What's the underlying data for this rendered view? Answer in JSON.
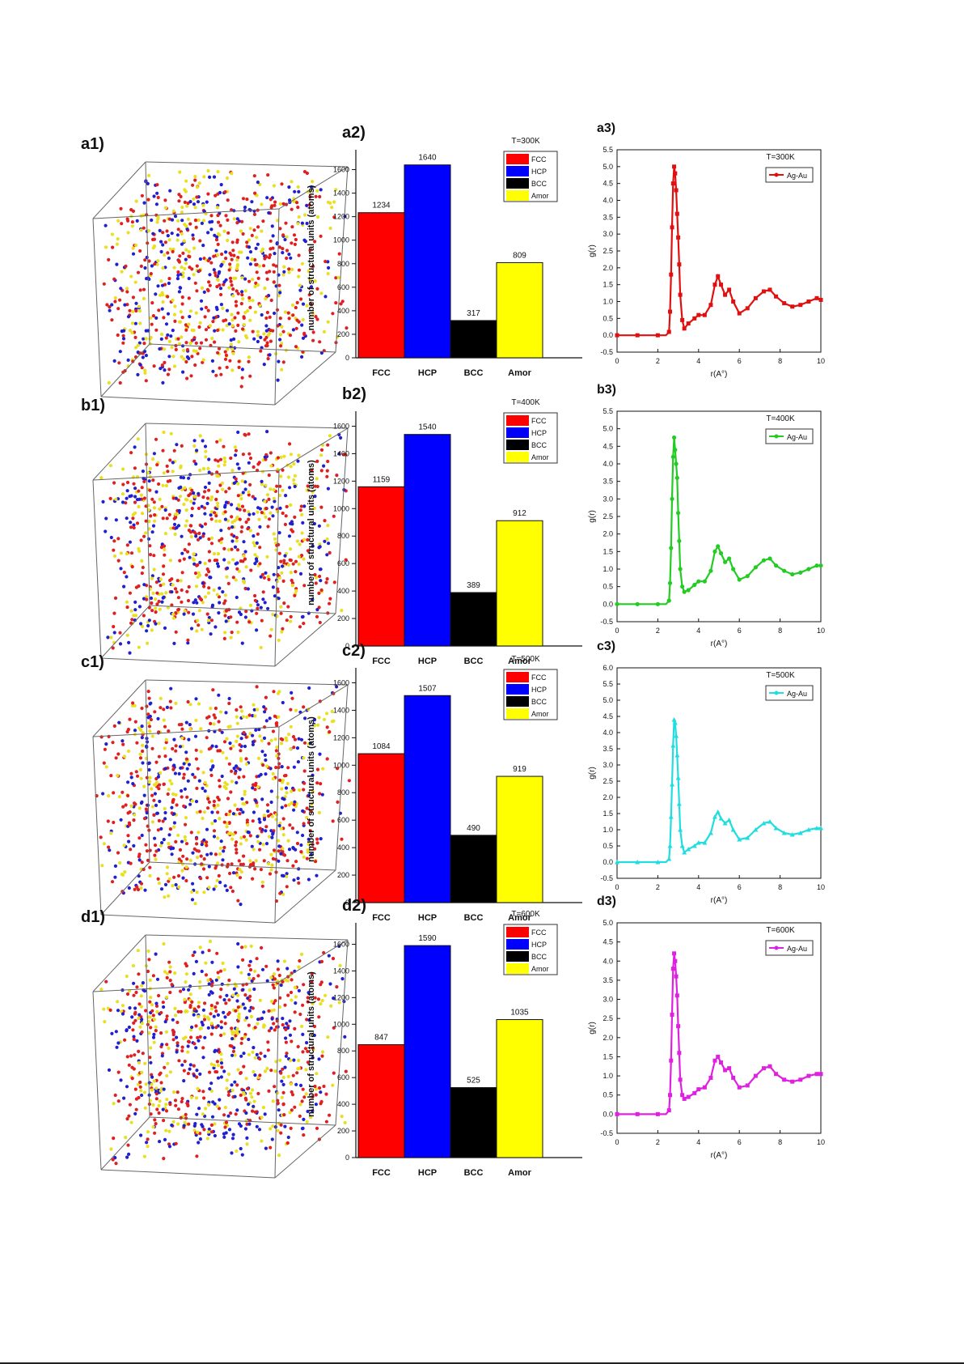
{
  "rows": [
    {
      "cube_label": "a1)",
      "bar": {
        "label": "a2)",
        "temp": "T=300K",
        "values": [
          1234,
          1640,
          317,
          809
        ],
        "ylim": [
          0,
          1700
        ],
        "ticks": [
          0,
          200,
          400,
          600,
          800,
          1000,
          1200,
          1400,
          1600
        ]
      },
      "rdf": {
        "label": "a3)",
        "temp": "T=300K",
        "color": "#e01010",
        "marker": "square",
        "ylim": [
          -0.5,
          5.5
        ],
        "yticks": [
          "-0.5",
          "0.0",
          "0.5",
          "1.0",
          "1.5",
          "2.0",
          "2.5",
          "3.0",
          "3.5",
          "4.0",
          "4.5",
          "5.0",
          "5.5"
        ],
        "x": [
          0,
          0.5,
          1,
          1.5,
          2,
          2.4,
          2.55,
          2.6,
          2.65,
          2.7,
          2.75,
          2.8,
          2.85,
          2.9,
          2.95,
          3.0,
          3.05,
          3.1,
          3.2,
          3.3,
          3.5,
          3.8,
          4.0,
          4.3,
          4.6,
          4.8,
          4.95,
          5.1,
          5.3,
          5.5,
          5.7,
          6.0,
          6.4,
          6.8,
          7.2,
          7.5,
          7.8,
          8.2,
          8.6,
          9.0,
          9.4,
          9.8,
          10
        ],
        "y": [
          0,
          0,
          0,
          0,
          0,
          0,
          0.1,
          0.7,
          1.8,
          3.2,
          4.5,
          5.0,
          4.8,
          4.3,
          3.6,
          2.9,
          2.1,
          1.2,
          0.45,
          0.2,
          0.35,
          0.5,
          0.6,
          0.6,
          0.9,
          1.5,
          1.75,
          1.5,
          1.2,
          1.35,
          1.0,
          0.65,
          0.8,
          1.1,
          1.3,
          1.35,
          1.15,
          0.95,
          0.85,
          0.9,
          1.0,
          1.1,
          1.05
        ]
      }
    },
    {
      "cube_label": "b1)",
      "bar": {
        "label": "b2)",
        "temp": "T=400K",
        "values": [
          1159,
          1540,
          389,
          912
        ],
        "ylim": [
          0,
          1650
        ],
        "ticks": [
          0,
          200,
          400,
          600,
          800,
          1000,
          1200,
          1400,
          1600
        ]
      },
      "rdf": {
        "label": "b3)",
        "temp": "T=400K",
        "color": "#22cc22",
        "marker": "circle",
        "ylim": [
          -0.5,
          5.5
        ],
        "yticks": [
          "-0.5",
          "0.0",
          "0.5",
          "1.0",
          "1.5",
          "2.0",
          "2.5",
          "3.0",
          "3.5",
          "4.0",
          "4.5",
          "5.0",
          "5.5"
        ],
        "x": [
          0,
          0.5,
          1,
          1.5,
          2,
          2.4,
          2.55,
          2.6,
          2.65,
          2.7,
          2.75,
          2.8,
          2.85,
          2.9,
          2.95,
          3.0,
          3.05,
          3.1,
          3.2,
          3.3,
          3.5,
          3.8,
          4.0,
          4.3,
          4.6,
          4.8,
          4.95,
          5.1,
          5.3,
          5.5,
          5.7,
          6.0,
          6.4,
          6.8,
          7.2,
          7.5,
          7.8,
          8.2,
          8.6,
          9.0,
          9.4,
          9.8,
          10
        ],
        "y": [
          0,
          0,
          0,
          0,
          0,
          0,
          0.1,
          0.6,
          1.6,
          3.0,
          4.2,
          4.75,
          4.4,
          4.0,
          3.6,
          2.6,
          1.8,
          1.0,
          0.5,
          0.35,
          0.4,
          0.55,
          0.65,
          0.65,
          0.95,
          1.5,
          1.65,
          1.45,
          1.2,
          1.3,
          1.0,
          0.7,
          0.8,
          1.05,
          1.25,
          1.3,
          1.1,
          0.95,
          0.85,
          0.9,
          1.0,
          1.1,
          1.1
        ]
      }
    },
    {
      "cube_label": "c1)",
      "bar": {
        "label": "c2)",
        "temp": "T=500K",
        "values": [
          1084,
          1507,
          490,
          919
        ],
        "ylim": [
          0,
          1650
        ],
        "ticks": [
          0,
          200,
          400,
          600,
          800,
          1000,
          1200,
          1400,
          1600
        ]
      },
      "rdf": {
        "label": "c3)",
        "temp": "T=500K",
        "color": "#22dde0",
        "marker": "triangle",
        "ylim": [
          -0.5,
          6.0
        ],
        "yticks": [
          "-0.5",
          "0.0",
          "0.5",
          "1.0",
          "1.5",
          "2.0",
          "2.5",
          "3.0",
          "3.5",
          "4.0",
          "4.5",
          "5.0",
          "5.5",
          "6.0"
        ],
        "x": [
          0,
          0.5,
          1,
          1.5,
          2,
          2.4,
          2.55,
          2.6,
          2.65,
          2.7,
          2.75,
          2.8,
          2.85,
          2.9,
          2.95,
          3.0,
          3.05,
          3.1,
          3.2,
          3.3,
          3.5,
          3.8,
          4.0,
          4.3,
          4.6,
          4.8,
          4.95,
          5.1,
          5.3,
          5.5,
          5.7,
          6.0,
          6.4,
          6.8,
          7.2,
          7.5,
          7.8,
          8.2,
          8.6,
          9.0,
          9.4,
          9.8,
          10
        ],
        "y": [
          0,
          0,
          0,
          0,
          0,
          0,
          0.1,
          0.5,
          1.4,
          2.4,
          3.6,
          4.4,
          4.3,
          3.9,
          3.3,
          2.6,
          1.8,
          1.0,
          0.5,
          0.3,
          0.4,
          0.5,
          0.6,
          0.6,
          0.9,
          1.4,
          1.55,
          1.35,
          1.2,
          1.3,
          1.0,
          0.7,
          0.75,
          1.0,
          1.2,
          1.25,
          1.05,
          0.9,
          0.85,
          0.9,
          1.0,
          1.05,
          1.05
        ]
      }
    },
    {
      "cube_label": "d1)",
      "bar": {
        "label": "d2)",
        "temp": "T=600K",
        "values": [
          847,
          1590,
          525,
          1035
        ],
        "ylim": [
          0,
          1700
        ],
        "ticks": [
          0,
          200,
          400,
          600,
          800,
          1000,
          1200,
          1400,
          1600
        ]
      },
      "rdf": {
        "label": "d3)",
        "temp": "T=600K",
        "color": "#e020e0",
        "marker": "square",
        "ylim": [
          -0.5,
          5.0
        ],
        "yticks": [
          "-0.5",
          "0.0",
          "0.5",
          "1.0",
          "1.5",
          "2.0",
          "2.5",
          "3.0",
          "3.5",
          "4.0",
          "4.5",
          "5.0"
        ],
        "x": [
          0,
          0.5,
          1,
          1.5,
          2,
          2.4,
          2.55,
          2.6,
          2.65,
          2.7,
          2.75,
          2.8,
          2.85,
          2.9,
          2.95,
          3.0,
          3.05,
          3.1,
          3.2,
          3.3,
          3.5,
          3.8,
          4.0,
          4.3,
          4.6,
          4.8,
          4.95,
          5.1,
          5.3,
          5.5,
          5.7,
          6.0,
          6.4,
          6.8,
          7.2,
          7.5,
          7.8,
          8.2,
          8.6,
          9.0,
          9.4,
          9.8,
          10
        ],
        "y": [
          0,
          0,
          0,
          0,
          0,
          0,
          0.1,
          0.5,
          1.4,
          2.6,
          3.8,
          4.2,
          4.0,
          3.6,
          3.1,
          2.3,
          1.6,
          0.9,
          0.5,
          0.4,
          0.45,
          0.55,
          0.65,
          0.7,
          0.95,
          1.4,
          1.5,
          1.35,
          1.15,
          1.2,
          0.95,
          0.7,
          0.75,
          1.0,
          1.2,
          1.25,
          1.05,
          0.9,
          0.85,
          0.9,
          1.0,
          1.05,
          1.05
        ]
      }
    }
  ],
  "shared": {
    "categories": [
      "FCC",
      "HCP",
      "BCC",
      "Amor"
    ],
    "legend": [
      "FCC",
      "HCP",
      "BCC",
      "Amor"
    ],
    "bar_colors": [
      "#ff0000",
      "#0000ff",
      "#000000",
      "#ffff00"
    ],
    "bar_ylabel": "number of structural units (atoms)",
    "rdf_xlabel": "r(A°)",
    "rdf_ylabel": "g(r)",
    "rdf_series": "Ag-Au",
    "rdf_xticks": [
      "0",
      "2",
      "4",
      "6",
      "8",
      "10"
    ],
    "atom_colors": [
      "#e02020",
      "#2020d0",
      "#e8e020",
      "#202040"
    ]
  },
  "chart_data": [
    {
      "type": "bar",
      "title": "T=300K",
      "ylabel": "number of structural units (atoms)",
      "categories": [
        "FCC",
        "HCP",
        "BCC",
        "Amor"
      ],
      "values": [
        1234,
        1640,
        317,
        809
      ],
      "ylim": [
        0,
        1700
      ]
    },
    {
      "type": "line",
      "title": "T=300K",
      "xlabel": "r(A°)",
      "ylabel": "g(r)",
      "series": [
        {
          "name": "Ag-Au"
        }
      ],
      "xlim": [
        0,
        10
      ],
      "ylim": [
        -0.5,
        5.5
      ]
    },
    {
      "type": "bar",
      "title": "T=400K",
      "ylabel": "number of structural units (atoms)",
      "categories": [
        "FCC",
        "HCP",
        "BCC",
        "Amor"
      ],
      "values": [
        1159,
        1540,
        389,
        912
      ],
      "ylim": [
        0,
        1650
      ]
    },
    {
      "type": "line",
      "title": "T=400K",
      "xlabel": "r(A°)",
      "ylabel": "g(r)",
      "series": [
        {
          "name": "Ag-Au"
        }
      ],
      "xlim": [
        0,
        10
      ],
      "ylim": [
        -0.5,
        5.5
      ]
    },
    {
      "type": "bar",
      "title": "T=500K",
      "ylabel": "number of structural units (atoms)",
      "categories": [
        "FCC",
        "HCP",
        "BCC",
        "Amor"
      ],
      "values": [
        1084,
        1507,
        490,
        919
      ],
      "ylim": [
        0,
        1650
      ]
    },
    {
      "type": "line",
      "title": "T=500K",
      "xlabel": "r(A°)",
      "ylabel": "g(r)",
      "series": [
        {
          "name": "Ag-Au"
        }
      ],
      "xlim": [
        0,
        10
      ],
      "ylim": [
        -0.5,
        6.0
      ]
    },
    {
      "type": "bar",
      "title": "T=600K",
      "ylabel": "number of structural units (atoms)",
      "categories": [
        "FCC",
        "HCP",
        "BCC",
        "Amor"
      ],
      "values": [
        847,
        1590,
        525,
        1035
      ],
      "ylim": [
        0,
        1700
      ]
    },
    {
      "type": "line",
      "title": "T=600K",
      "xlabel": "r(A°)",
      "ylabel": "g(r)",
      "series": [
        {
          "name": "Ag-Au"
        }
      ],
      "xlim": [
        0,
        10
      ],
      "ylim": [
        -0.5,
        5.0
      ]
    }
  ]
}
